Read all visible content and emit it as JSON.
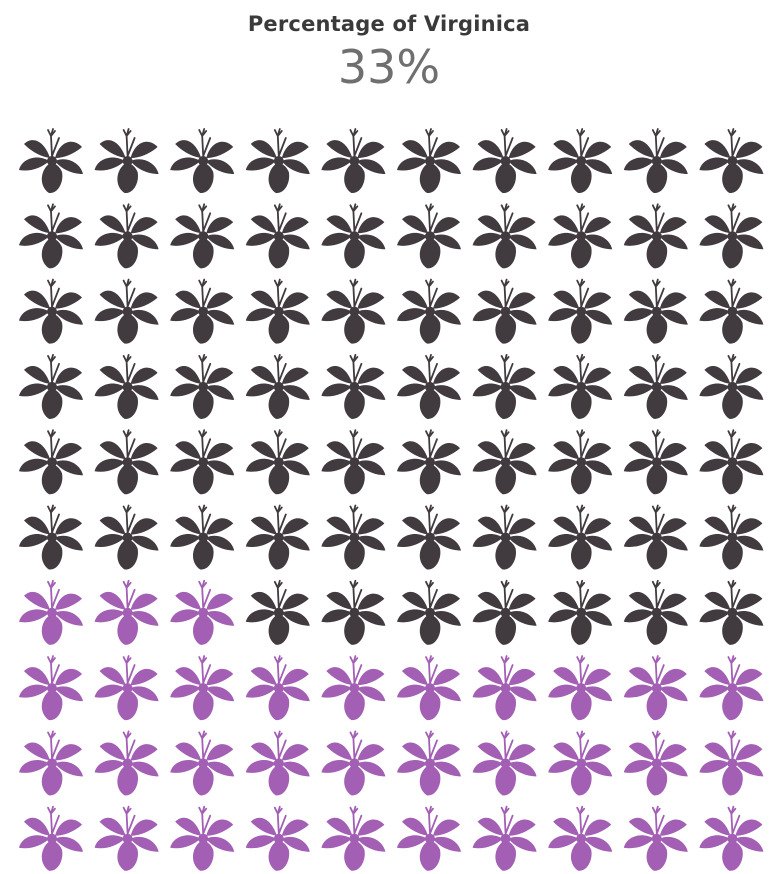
{
  "header": {
    "title": "Percentage of Virginica",
    "value": "33%"
  },
  "chart_data": {
    "type": "waffle",
    "title": "Percentage of Virginica",
    "value_label": "33%",
    "percent": 33,
    "total_units": 100,
    "highlighted_units": 33,
    "rows": 10,
    "columns": 10,
    "fill_order": "bottom-up, left-to-right",
    "icon": "iris-flower-icon",
    "colors": {
      "highlighted": "#a25fb4",
      "other": "#413a3e"
    }
  }
}
